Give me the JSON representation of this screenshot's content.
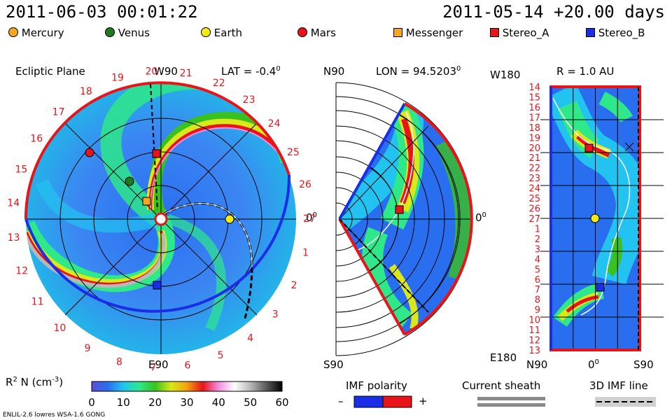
{
  "header": {
    "datetime": "2011-06-03 00:01:22",
    "reference": "2011-05-14 +20.00 days"
  },
  "legend": [
    {
      "name": "Mercury",
      "color": "#f5a623",
      "shape": "circle"
    },
    {
      "name": "Venus",
      "color": "#1f7a1f",
      "shape": "circle"
    },
    {
      "name": "Earth",
      "color": "#f5ea14",
      "shape": "circle"
    },
    {
      "name": "Mars",
      "color": "#e8141a",
      "shape": "circle"
    },
    {
      "name": "Messenger",
      "color": "#f5a623",
      "shape": "square"
    },
    {
      "name": "Stereo_A",
      "color": "#e8141a",
      "shape": "square"
    },
    {
      "name": "Stereo_B",
      "color": "#1a2ee8",
      "shape": "square"
    }
  ],
  "panel1": {
    "title": "Ecliptic Plane",
    "top_label": "W90",
    "lat_label": "LAT = -0.4",
    "lat_sup": "0",
    "right_label": "0",
    "right_sup": "0",
    "bottom_label": "E90",
    "rim_numbers": [
      "19",
      "20",
      "21",
      "22",
      "23",
      "24",
      "25",
      "26",
      "27",
      "1",
      "2",
      "3",
      "4",
      "5",
      "6",
      "7",
      "8",
      "9",
      "10",
      "11",
      "12",
      "13",
      "14",
      "15",
      "16",
      "17",
      "18"
    ]
  },
  "panel2": {
    "top_label": "N90",
    "lon_label": "LON = 94.5203",
    "lon_sup": "0",
    "right_label": "0",
    "right_sup": "0",
    "bottom_label": "S90"
  },
  "panel3": {
    "top_left_label": "W180",
    "r_label": "R = 1.0 AU",
    "bottom_left_label": "E180",
    "bottom_labels": [
      "N90",
      "0",
      "S90"
    ],
    "bottom_mid_sup": "0",
    "scale_numbers": [
      "14",
      "15",
      "16",
      "17",
      "18",
      "19",
      "20",
      "21",
      "22",
      "23",
      "24",
      "25",
      "26",
      "27",
      "1",
      "2",
      "3",
      "4",
      "5",
      "6",
      "7",
      "8",
      "9",
      "10",
      "11",
      "12",
      "13"
    ]
  },
  "colorbar": {
    "label": "R",
    "label_sup": "2",
    "label_rest": "N (cm",
    "label_sup2": "-3",
    "label_end": ")",
    "ticks": [
      "0",
      "10",
      "20",
      "30",
      "40",
      "50",
      "60"
    ],
    "stops": [
      "#5a4fd6",
      "#2a6ef0",
      "#22c3f0",
      "#2ee88a",
      "#39c21f",
      "#d9e81a",
      "#f2a20f",
      "#e8141a",
      "#f28fe0",
      "#ffffff",
      "#b8b8b8",
      "#5a5a5a",
      "#000000"
    ]
  },
  "bottom_legend": {
    "imf_title": "IMF polarity",
    "imf_minus": "–",
    "imf_plus": "+",
    "sheath_title": "Current sheath",
    "imf3d_title": "3D IMF line"
  },
  "footer": {
    "model": "ENLIL-2.6 lowres WSA-1.6 GONG"
  },
  "colors": {
    "accent_red": "#e8141a",
    "accent_blue": "#1a2ee8"
  }
}
